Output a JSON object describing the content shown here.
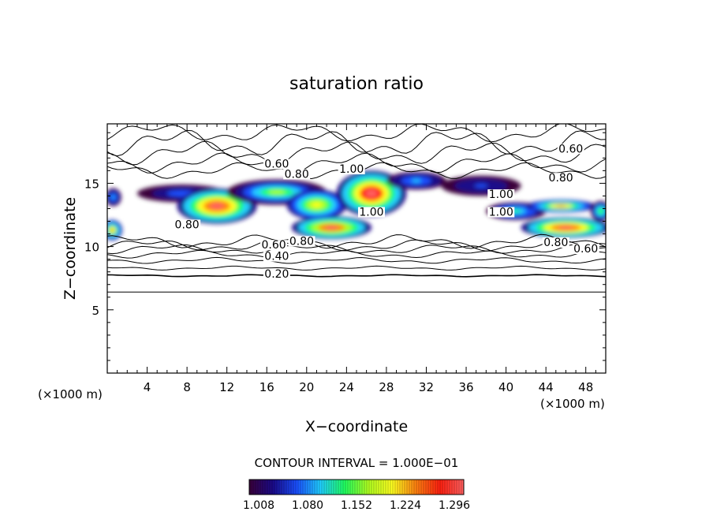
{
  "chart_data": {
    "type": "heatmap",
    "title": "saturation ratio",
    "xlabel": "X−coordinate",
    "ylabel": "Z−coordinate",
    "x_unit_left": "(×1000 m)",
    "x_unit_right": "(×1000 m)",
    "xlim": [
      0,
      50
    ],
    "ylim": [
      0,
      19.7
    ],
    "x_ticks": [
      4,
      8,
      12,
      16,
      20,
      24,
      28,
      32,
      36,
      40,
      44,
      48
    ],
    "y_ticks": [
      5,
      10,
      15
    ],
    "contour_interval_label": "CONTOUR INTERVAL = 1.000E−01",
    "colorbar": {
      "min": 1.0,
      "max": 1.3,
      "labels": [
        "1.008",
        "1.080",
        "1.152",
        "1.224",
        "1.296"
      ],
      "colors": [
        "#3a003a",
        "#1a0a8a",
        "#1a50ff",
        "#20d0ff",
        "#20ff60",
        "#b0ff20",
        "#ffff20",
        "#ff8010",
        "#ff2010",
        "#ff6060"
      ]
    },
    "contour_labels": [
      {
        "text": "0.60",
        "x": 46.5,
        "y": 17.5
      },
      {
        "text": "0.60",
        "x": 17.0,
        "y": 16.3
      },
      {
        "text": "0.80",
        "x": 19.0,
        "y": 15.5
      },
      {
        "text": "1.00",
        "x": 24.5,
        "y": 15.9
      },
      {
        "text": "0.80",
        "x": 45.5,
        "y": 15.2
      },
      {
        "text": "1.00",
        "x": 39.5,
        "y": 13.9
      },
      {
        "text": "1.00",
        "x": 26.5,
        "y": 12.5
      },
      {
        "text": "1.00",
        "x": 39.5,
        "y": 12.5
      },
      {
        "text": "0.80",
        "x": 8.0,
        "y": 11.5
      },
      {
        "text": "0.60",
        "x": 16.7,
        "y": 9.9
      },
      {
        "text": "0.80",
        "x": 19.5,
        "y": 10.2
      },
      {
        "text": "0.40",
        "x": 17.0,
        "y": 9.0
      },
      {
        "text": "0.20",
        "x": 17.0,
        "y": 7.6
      },
      {
        "text": "0.80",
        "x": 45.0,
        "y": 10.1
      },
      {
        "text": "0.60",
        "x": 48.0,
        "y": 9.6
      }
    ],
    "supersaturated_regions": [
      {
        "cx": 0.5,
        "cy": 11.3,
        "rx": 1.0,
        "ry": 0.8,
        "peak": 1.22
      },
      {
        "cx": 0.6,
        "cy": 13.9,
        "rx": 0.8,
        "ry": 0.7,
        "peak": 1.1
      },
      {
        "cx": 7.5,
        "cy": 14.2,
        "rx": 4.5,
        "ry": 0.7,
        "peak": 1.08
      },
      {
        "cx": 11.0,
        "cy": 13.2,
        "rx": 4.0,
        "ry": 1.4,
        "peak": 1.28
      },
      {
        "cx": 17.0,
        "cy": 14.3,
        "rx": 5.0,
        "ry": 1.0,
        "peak": 1.16
      },
      {
        "cx": 21.0,
        "cy": 13.3,
        "rx": 3.0,
        "ry": 1.2,
        "peak": 1.2
      },
      {
        "cx": 26.5,
        "cy": 14.2,
        "rx": 3.5,
        "ry": 1.8,
        "peak": 1.29
      },
      {
        "cx": 31.0,
        "cy": 15.2,
        "rx": 3.0,
        "ry": 0.7,
        "peak": 1.1
      },
      {
        "cx": 22.5,
        "cy": 11.5,
        "rx": 4.0,
        "ry": 0.9,
        "peak": 1.27
      },
      {
        "cx": 37.5,
        "cy": 14.8,
        "rx": 4.0,
        "ry": 0.8,
        "peak": 1.06
      },
      {
        "cx": 41.0,
        "cy": 12.8,
        "rx": 3.0,
        "ry": 0.7,
        "peak": 1.12
      },
      {
        "cx": 45.5,
        "cy": 13.2,
        "rx": 3.5,
        "ry": 0.5,
        "peak": 1.22
      },
      {
        "cx": 46.0,
        "cy": 11.5,
        "rx": 4.5,
        "ry": 0.8,
        "peak": 1.28
      },
      {
        "cx": 49.5,
        "cy": 12.8,
        "rx": 1.0,
        "ry": 0.8,
        "peak": 1.15
      }
    ]
  }
}
